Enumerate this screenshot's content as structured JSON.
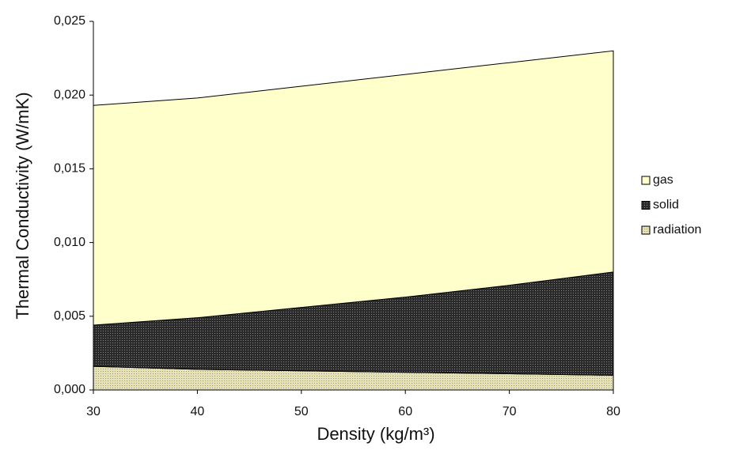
{
  "chart_data": {
    "type": "stacked_area",
    "xlabel": "Density (kg/m³)",
    "ylabel": "Thermal Conductivity (W/mK)",
    "x": [
      30,
      40,
      50,
      60,
      70,
      80
    ],
    "series": [
      {
        "name": "gas",
        "color": "#ffffcc",
        "values": [
          0.0149,
          0.0149,
          0.015,
          0.0151,
          0.0151,
          0.015
        ]
      },
      {
        "name": "solid",
        "color": "#2a2a2a",
        "values": [
          0.0028,
          0.0035,
          0.0043,
          0.0051,
          0.006,
          0.007
        ]
      },
      {
        "name": "radiation",
        "color": "#e6e2b4",
        "values": [
          0.0016,
          0.0014,
          0.0013,
          0.0012,
          0.0011,
          0.001
        ]
      }
    ],
    "xlim": [
      30,
      80
    ],
    "xticks": [
      30,
      40,
      50,
      60,
      70,
      80
    ],
    "ylim": [
      0,
      0.025
    ],
    "yticks": [
      {
        "value": 0,
        "label": "0,000"
      },
      {
        "value": 0.005,
        "label": "0,005"
      },
      {
        "value": 0.01,
        "label": "0,010"
      },
      {
        "value": 0.015,
        "label": "0,015"
      },
      {
        "value": 0.02,
        "label": "0,020"
      },
      {
        "value": 0.025,
        "label": "0,025"
      }
    ],
    "grid": false,
    "legend": "right"
  }
}
